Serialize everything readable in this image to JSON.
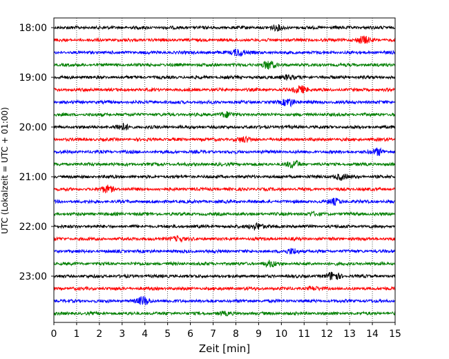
{
  "chart_data": {
    "type": "line",
    "subtype": "seismic helicorder",
    "xlabel": "Zeit  [min]",
    "ylabel": "UTC (Lokalzeit = UTC + 01:00)",
    "xlim": [
      0,
      15
    ],
    "x_ticks": [
      "0",
      "1",
      "2",
      "3",
      "4",
      "5",
      "6",
      "7",
      "8",
      "9",
      "10",
      "11",
      "12",
      "13",
      "14",
      "15"
    ],
    "y_tick_labels": [
      "18:00",
      "19:00",
      "20:00",
      "21:00",
      "22:00",
      "23:00"
    ],
    "grid": "vertical dotted at each minute",
    "trace_interval_minutes": 15,
    "trace_start_times": [
      "18:00",
      "18:15",
      "18:30",
      "18:45",
      "19:00",
      "19:15",
      "19:30",
      "19:45",
      "20:00",
      "20:15",
      "20:30",
      "20:45",
      "21:00",
      "21:15",
      "21:30",
      "21:45",
      "22:00",
      "22:15",
      "22:30",
      "22:45",
      "23:00",
      "23:15",
      "23:30",
      "23:45"
    ],
    "trace_colors": [
      "#000000",
      "#ff0000",
      "#0000ff",
      "#007f00"
    ]
  }
}
